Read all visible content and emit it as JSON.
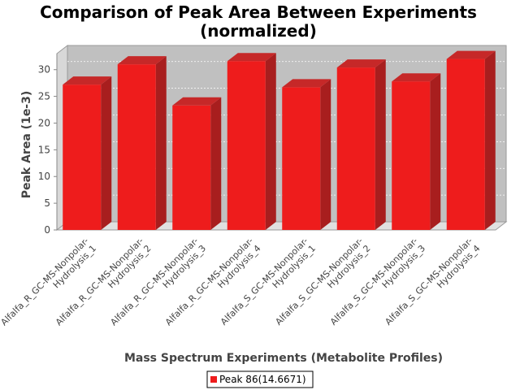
{
  "chart_data": {
    "type": "bar",
    "title": [
      "Comparison of Peak Area Between Experiments",
      "(normalized)"
    ],
    "xlabel": "Mass Spectrum Experiments (Metabolite Profiles)",
    "ylabel": "Peak Area (1e-3)",
    "ylim": [
      0,
      33
    ],
    "yticks": [
      "0",
      "5",
      "10",
      "15",
      "20",
      "25",
      "30"
    ],
    "grid": true,
    "legend_position": "bottom",
    "categories": [
      [
        "Alfalfa_R_GC-MS-Nonpolar-",
        "Hydrolysis_1"
      ],
      [
        "Alfalfa_R_GC-MS-Nonpolar-",
        "Hydrolysis_2"
      ],
      [
        "Alfalfa_R_GC-MS-Nonpolar-",
        "Hydrolysis_3"
      ],
      [
        "Alfalfa_R_GC-MS-Nonpolar-",
        "Hydrolysis_4"
      ],
      [
        "Alfalfa_S_GC-MS-Nonpolar-",
        "Hydrolysis_1"
      ],
      [
        "Alfalfa_S_GC-MS-Nonpolar-",
        "Hydrolysis_2"
      ],
      [
        "Alfalfa_S_GC-MS-Nonpolar-",
        "Hydrolysis_3"
      ],
      [
        "Alfalfa_S_GC-MS-Nonpolar-",
        "Hydrolysis_4"
      ]
    ],
    "series": [
      {
        "name": "Peak 86(14.6671)",
        "color": "#ee1c1c",
        "values": [
          27.2,
          31.0,
          23.3,
          31.6,
          26.7,
          30.4,
          27.8,
          32.0
        ]
      }
    ]
  }
}
